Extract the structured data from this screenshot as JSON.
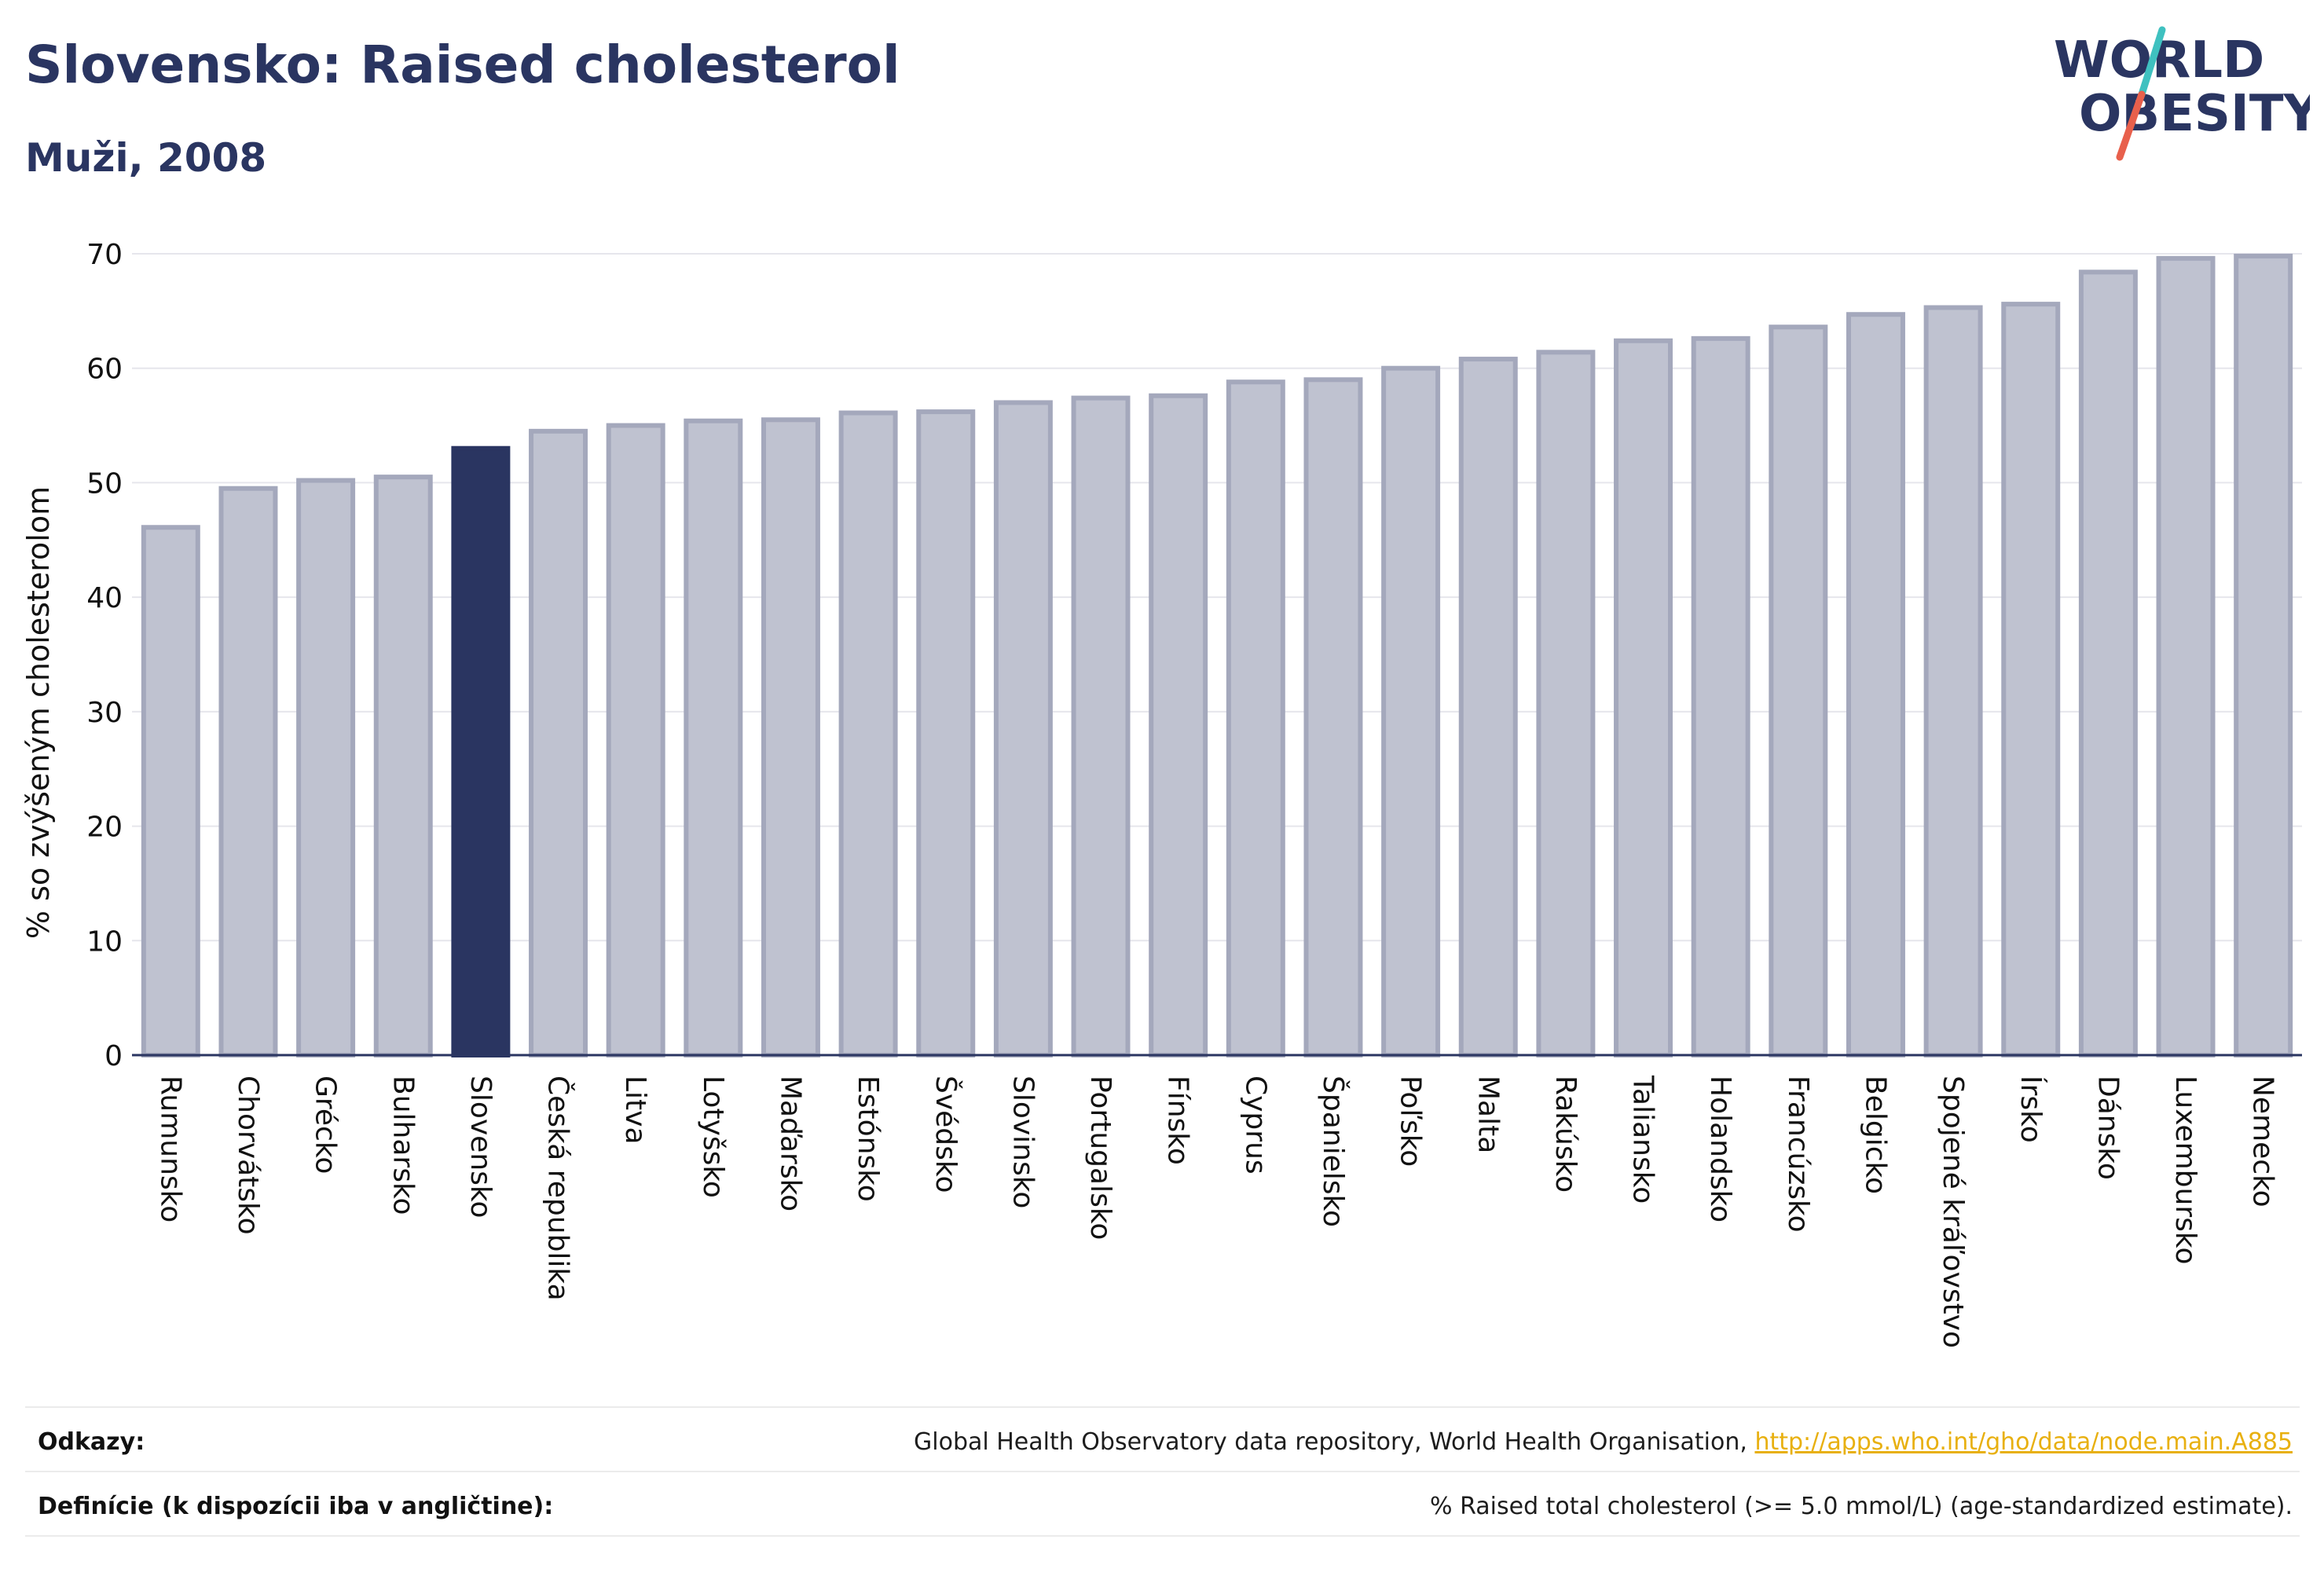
{
  "header": {
    "title": "Slovensko: Raised cholesterol",
    "subtitle": "Muži, 2008"
  },
  "logo": {
    "line1": "WORLD",
    "line2": "OBESITY",
    "text_color": "#2a3561",
    "slash_colors": [
      "#3fc1c0",
      "#e8604c"
    ]
  },
  "chart_data": {
    "type": "bar",
    "ylabel": "% so zvýšeným cholesterolom",
    "xlabel": "",
    "ylim": [
      0,
      70
    ],
    "yticks": [
      0,
      10,
      20,
      30,
      40,
      50,
      60,
      70
    ],
    "grid": true,
    "highlight": "Slovensko",
    "colors": {
      "bar": "#bfc2d0",
      "bar_edge": "#a4a8bc",
      "highlight": "#2a3561"
    },
    "categories": [
      "Rumunsko",
      "Chorvátsko",
      "Grécko",
      "Bulharsko",
      "Slovensko",
      "Česká republika",
      "Litva",
      "Lotyšsko",
      "Maďarsko",
      "Estónsko",
      "Švédsko",
      "Slovinsko",
      "Portugalsko",
      "Fínsko",
      "Cyprus",
      "Španielsko",
      "Poľsko",
      "Malta",
      "Rakúsko",
      "Taliansko",
      "Holandsko",
      "Francúzsko",
      "Belgicko",
      "Spojené kráľovstvo",
      "Írsko",
      "Dánsko",
      "Luxembursko",
      "Nemecko"
    ],
    "values": [
      46.1,
      49.5,
      50.2,
      50.5,
      53.0,
      54.5,
      55.0,
      55.4,
      55.5,
      56.1,
      56.2,
      57.0,
      57.4,
      57.6,
      58.8,
      59.0,
      60.0,
      60.8,
      61.4,
      62.4,
      62.6,
      63.6,
      64.7,
      65.3,
      65.6,
      68.4,
      69.6,
      69.8
    ]
  },
  "footer": {
    "references_label": "Odkazy:",
    "references_text": "Global Health Observatory data repository, World Health Organisation, ",
    "references_link": "http://apps.who.int/gho/data/node.main.A885",
    "definitions_label": "Definície (k dispozícii iba v angličtine):",
    "definitions_text": "% Raised total cholesterol (>= 5.0 mmol/L) (age-standardized estimate)."
  }
}
